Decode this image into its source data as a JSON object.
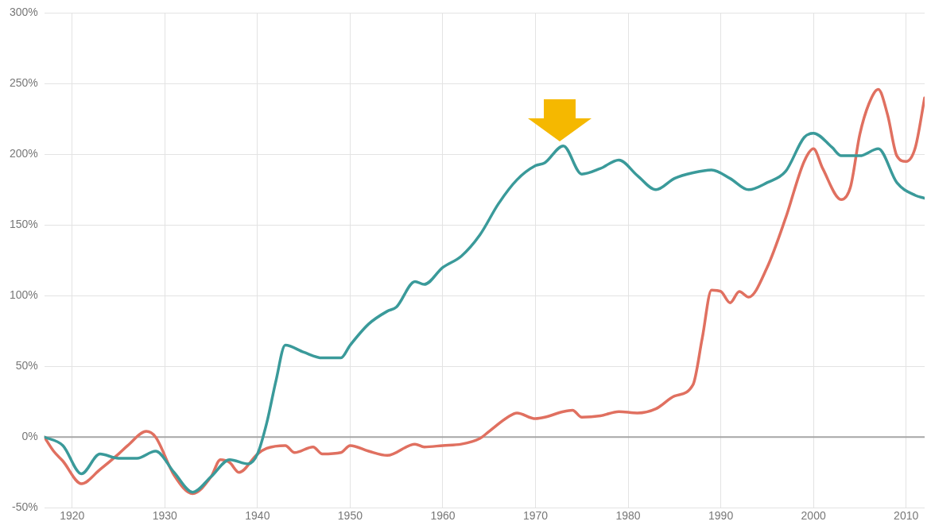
{
  "chart_data": {
    "type": "line",
    "xlim": [
      1917,
      2012
    ],
    "xticks": [
      1920,
      1930,
      1940,
      1950,
      1960,
      1970,
      1980,
      1990,
      2000,
      2010
    ],
    "ylim": [
      -50,
      300
    ],
    "yticks": [
      {
        "value": -50,
        "label": "-50%"
      },
      {
        "value": 0,
        "label": "0%"
      },
      {
        "value": 50,
        "label": "50%"
      },
      {
        "value": 100,
        "label": "100%"
      },
      {
        "value": 150,
        "label": "150%"
      },
      {
        "value": 200,
        "label": "200%"
      },
      {
        "value": 250,
        "label": "250%"
      },
      {
        "value": 300,
        "label": "300%"
      }
    ],
    "grid": true,
    "legend": false,
    "marker": "none",
    "line_style": "solid",
    "ref_lines": [
      {
        "axis": "y",
        "value": 0,
        "color": "#a6a6a6"
      }
    ],
    "series": [
      {
        "color": "#3a9a9a",
        "x": [
          1917,
          1919,
          1921,
          1923,
          1925,
          1927,
          1929,
          1931,
          1933,
          1935,
          1937,
          1939,
          1940,
          1941,
          1942,
          1943,
          1945,
          1947,
          1949,
          1950,
          1952,
          1954,
          1955,
          1957,
          1958,
          1960,
          1962,
          1964,
          1966,
          1968,
          1970,
          1971,
          1973,
          1975,
          1977,
          1979,
          1981,
          1983,
          1985,
          1987,
          1989,
          1991,
          1993,
          1995,
          1997,
          1999,
          2000,
          2002,
          2003,
          2005,
          2007,
          2009,
          2011,
          2012
        ],
        "values": [
          0,
          -6,
          -26,
          -12,
          -15,
          -15,
          -10,
          -25,
          -39,
          -28,
          -16,
          -19,
          -12,
          10,
          40,
          65,
          60,
          56,
          56,
          65,
          80,
          89,
          92,
          110,
          108,
          120,
          128,
          143,
          165,
          182,
          192,
          194,
          206,
          186,
          190,
          196,
          185,
          175,
          183,
          187,
          189,
          183,
          175,
          180,
          188,
          212,
          215,
          205,
          199,
          199,
          204,
          180,
          171,
          169
        ]
      },
      {
        "color": "#e07060",
        "x": [
          1917,
          1918,
          1919,
          1921,
          1923,
          1925,
          1926,
          1928,
          1929,
          1931,
          1933,
          1935,
          1936,
          1937,
          1938,
          1940,
          1941,
          1943,
          1944,
          1946,
          1947,
          1949,
          1950,
          1952,
          1954,
          1957,
          1958,
          1960,
          1962,
          1964,
          1965,
          1967,
          1968,
          1970,
          1971,
          1973,
          1974,
          1975,
          1977,
          1979,
          1981,
          1983,
          1985,
          1987,
          1988,
          1989,
          1990,
          1991,
          1992,
          1993,
          1995,
          1997,
          1999,
          2000,
          2001,
          2003,
          2004,
          2005,
          2006,
          2007,
          2008,
          2009,
          2010,
          2011,
          2012
        ],
        "values": [
          0,
          -10,
          -17,
          -33,
          -23,
          -12,
          -6,
          4,
          0,
          -27,
          -40,
          -28,
          -16,
          -18,
          -25,
          -12,
          -8,
          -6,
          -11,
          -7,
          -12,
          -11,
          -6,
          -10,
          -13,
          -5,
          -7,
          -6,
          -5,
          -1,
          4,
          14,
          17,
          13,
          14,
          18,
          19,
          14,
          15,
          18,
          17,
          20,
          29,
          37,
          70,
          104,
          103,
          95,
          103,
          99,
          120,
          155,
          195,
          204,
          190,
          168,
          177,
          214,
          236,
          246,
          228,
          199,
          195,
          205,
          240
        ]
      }
    ]
  }
}
